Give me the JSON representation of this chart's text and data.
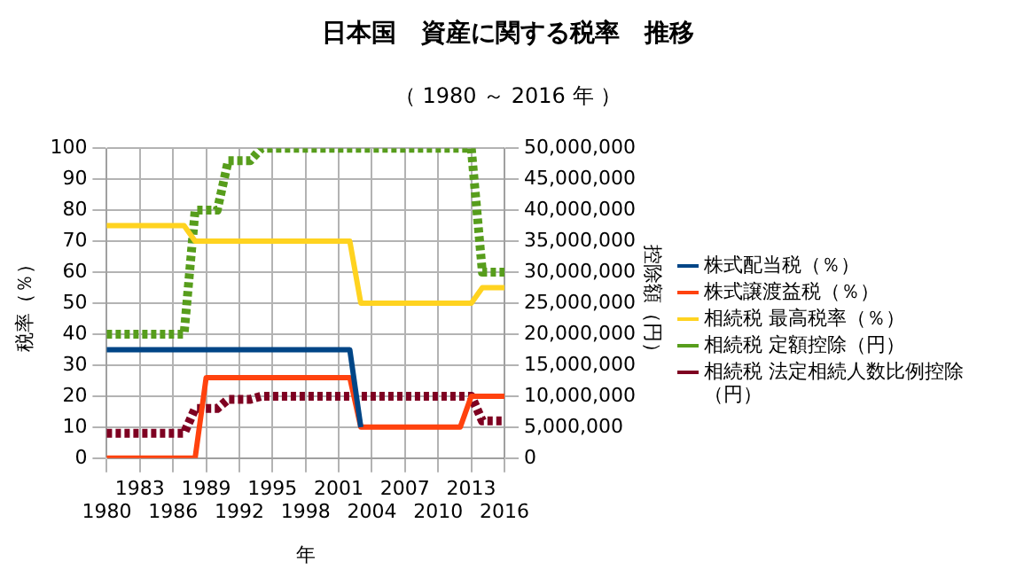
{
  "chart_data": {
    "type": "line",
    "title": "日本国　資産に関する税率　推移",
    "subtitle": "（ 1980 ～ 2016 年 ）",
    "xlabel": "年",
    "ylabel": "税率（％）",
    "y2label": "控除額（円）",
    "categories": [
      "1980",
      null,
      null,
      "1983",
      null,
      null,
      "1986",
      null,
      null,
      "1989",
      null,
      null,
      "1992",
      null,
      null,
      "1995",
      null,
      null,
      "1998",
      null,
      null,
      "2001",
      null,
      null,
      "2004",
      null,
      null,
      "2007",
      null,
      null,
      "2010",
      null,
      null,
      "2013",
      null,
      null,
      "2016"
    ],
    "series": [
      {
        "name": "株式配当税（％）",
        "color": "#004586",
        "line_style": "solid",
        "values": [
          35,
          35,
          35,
          35,
          35,
          35,
          35,
          35,
          35,
          35,
          35,
          35,
          35,
          35,
          35,
          35,
          35,
          35,
          35,
          35,
          35,
          35,
          35,
          10,
          null,
          null,
          null,
          null,
          null,
          null,
          null,
          null,
          null,
          null,
          null,
          null,
          null
        ]
      },
      {
        "name": "株式譲渡益税（％）",
        "color": "#ff420e",
        "line_style": "solid",
        "values": [
          0,
          0,
          0,
          0,
          0,
          0,
          0,
          0,
          0,
          26,
          26,
          26,
          26,
          26,
          26,
          26,
          26,
          26,
          26,
          26,
          26,
          26,
          26,
          10,
          10,
          10,
          10,
          10,
          10,
          10,
          10,
          10,
          10,
          20,
          20,
          20,
          20
        ]
      },
      {
        "name": "相続税 最高税率（％）",
        "color": "#ffd320",
        "line_style": "solid",
        "values": [
          75,
          75,
          75,
          75,
          75,
          75,
          75,
          75,
          70,
          70,
          70,
          70,
          70,
          70,
          70,
          70,
          70,
          70,
          70,
          70,
          70,
          70,
          70,
          50,
          50,
          50,
          50,
          50,
          50,
          50,
          50,
          50,
          50,
          50,
          55,
          55,
          55
        ]
      },
      {
        "name": "相続税 定額控除（円）",
        "color": "#579d1c",
        "line_style": "dotted",
        "axis": "y2",
        "values": [
          20000000,
          20000000,
          20000000,
          20000000,
          20000000,
          20000000,
          20000000,
          20000000,
          40000000,
          40000000,
          40000000,
          48000000,
          48000000,
          48000000,
          50000000,
          50000000,
          50000000,
          50000000,
          50000000,
          50000000,
          50000000,
          50000000,
          50000000,
          50000000,
          50000000,
          50000000,
          50000000,
          50000000,
          50000000,
          50000000,
          50000000,
          50000000,
          50000000,
          50000000,
          30000000,
          30000000,
          30000000
        ]
      },
      {
        "name": "相続税 法定相続人数比例控除（円）",
        "color": "#7e0021",
        "line_style": "dotted",
        "axis": "y2",
        "values": [
          4000000,
          4000000,
          4000000,
          4000000,
          4000000,
          4000000,
          4000000,
          4000000,
          8000000,
          8000000,
          8000000,
          9500000,
          9500000,
          9500000,
          10000000,
          10000000,
          10000000,
          10000000,
          10000000,
          10000000,
          10000000,
          10000000,
          10000000,
          10000000,
          10000000,
          10000000,
          10000000,
          10000000,
          10000000,
          10000000,
          10000000,
          10000000,
          10000000,
          10000000,
          6000000,
          6000000,
          6000000
        ]
      }
    ],
    "ylim": [
      0,
      100
    ],
    "yticks": [
      0,
      10,
      20,
      30,
      40,
      50,
      60,
      70,
      80,
      90,
      100
    ],
    "y2lim": [
      0,
      50000000
    ],
    "y2ticks": [
      {
        "value": 0,
        "label": "0"
      },
      {
        "value": 5000000,
        "label": "5,000,000"
      },
      {
        "value": 10000000,
        "label": "10,000,000"
      },
      {
        "value": 15000000,
        "label": "15,000,000"
      },
      {
        "value": 20000000,
        "label": "20,000,000"
      },
      {
        "value": 25000000,
        "label": "25,000,000"
      },
      {
        "value": 30000000,
        "label": "30,000,000"
      },
      {
        "value": 35000000,
        "label": "35,000,000"
      },
      {
        "value": 40000000,
        "label": "40,000,000"
      },
      {
        "value": 45000000,
        "label": "45,000,000"
      },
      {
        "value": 50000000,
        "label": "50,000,000"
      }
    ],
    "grid": true,
    "legend": "right",
    "marker": "none"
  }
}
